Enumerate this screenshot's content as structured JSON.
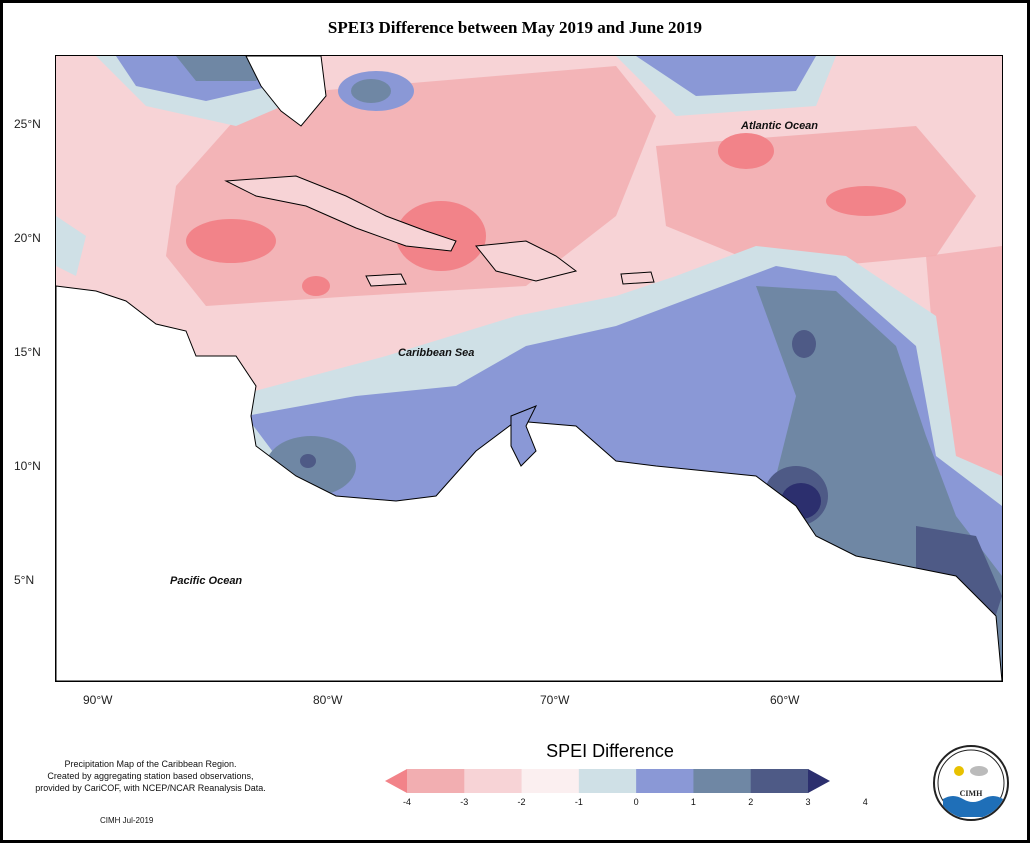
{
  "title": "SPEI3 Difference between May 2019 and June 2019",
  "map": {
    "labels": {
      "atlantic": "Atlantic Ocean",
      "caribbean": "Caribbean Sea",
      "pacific": "Pacific Ocean"
    },
    "lat_ticks": [
      "25°N",
      "20°N",
      "15°N",
      "10°N",
      "5°N"
    ],
    "lon_ticks": [
      "90°W",
      "80°W",
      "70°W",
      "60°W"
    ]
  },
  "legend": {
    "title": "SPEI Difference",
    "ticks": [
      "-4",
      "-3",
      "-2",
      "-1",
      "0",
      "1",
      "2",
      "3",
      "4"
    ],
    "colors": [
      "#f28389",
      "#f2aeb1",
      "#f7d3d6",
      "#fbeff0",
      "#cfe0e6",
      "#8a98d6",
      "#6f87a4",
      "#4e5a86",
      "#2c2f6e"
    ]
  },
  "footer": {
    "line1": "Precipitation Map of the Caribbean Region.",
    "line2": "Created by aggregating station based observations,",
    "line3": "provided by CariCOF, with NCEP/NCAR Reanalysis Data.",
    "date": "CIMH Jul-2019"
  },
  "logo": {
    "text": "CIMH"
  }
}
